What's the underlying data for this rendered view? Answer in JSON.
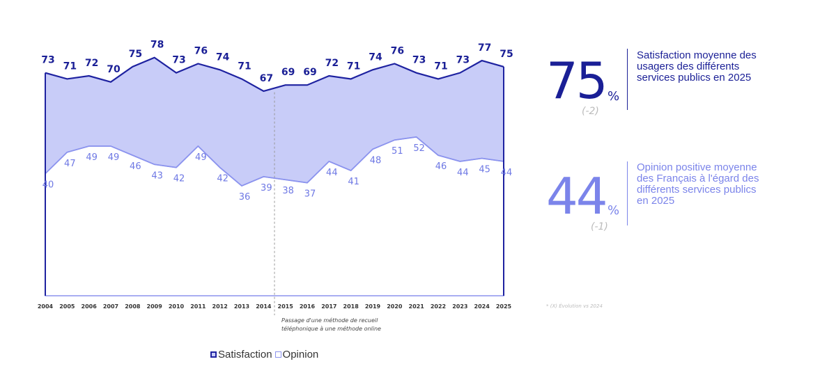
{
  "chart_data": {
    "type": "area",
    "x": [
      "2004",
      "2005",
      "2006",
      "2007",
      "2008",
      "2009",
      "2010",
      "2011",
      "2012",
      "2013",
      "2014",
      "2015",
      "2016",
      "2017",
      "2018",
      "2019",
      "2020",
      "2021",
      "2022",
      "2023",
      "2024",
      "2025"
    ],
    "series": [
      {
        "name": "Satisfaction",
        "values": [
          73,
          71,
          72,
          70,
          75,
          78,
          73,
          76,
          74,
          71,
          67,
          69,
          69,
          72,
          71,
          74,
          76,
          73,
          71,
          73,
          77,
          75
        ]
      },
      {
        "name": "Opinion",
        "values": [
          40,
          47,
          49,
          49,
          46,
          43,
          42,
          49,
          42,
          36,
          39,
          38,
          37,
          44,
          41,
          48,
          51,
          52,
          46,
          44,
          45,
          44
        ]
      }
    ],
    "ylim": [
      0,
      85
    ],
    "grid": false,
    "legend": "bottom-left",
    "annotation": "Passage d'une méthode de recueil téléphonique à une méthode online",
    "colors": {
      "satisfaction_line": "#1e22a0",
      "satisfaction_text": "#1a1f96",
      "opinion_line": "#8b93ee",
      "opinion_text": "#6e78e4",
      "fill_band": "#c8ccf8",
      "axis": "#8b93ee"
    }
  },
  "kpis": [
    {
      "value": "75",
      "unit": "%",
      "evolution": "(-2)",
      "label": "Satisfaction moyenne des usagers des différents services publics en 2025",
      "color": "#1a1f96"
    },
    {
      "value": "44",
      "unit": "%",
      "evolution": "(-1)",
      "label": "Opinion positive moyenne des Français à l'égard des différents services publics en 2025",
      "color": "#7b84ea"
    }
  ],
  "footnote": "* (X) Évolution vs 2024",
  "legend": {
    "satisfaction_label": "Satisfaction",
    "opinion_label": "Opinion"
  }
}
